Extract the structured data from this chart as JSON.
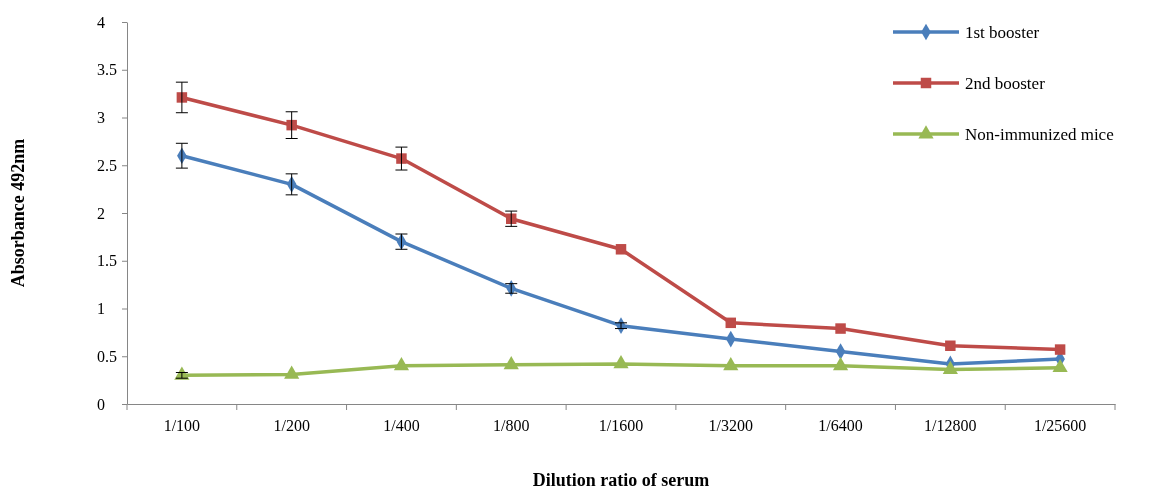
{
  "chart_data": {
    "type": "line",
    "xlabel": "Dilution ratio of serum",
    "ylabel": "Absorbance 492nm",
    "categories": [
      "1/100",
      "1/200",
      "1/400",
      "1/800",
      "1/1600",
      "1/3200",
      "1/6400",
      "1/12800",
      "1/25600"
    ],
    "ylim": [
      0,
      4
    ],
    "yticks": [
      0,
      0.5,
      1,
      1.5,
      2,
      2.5,
      3,
      3.5,
      4
    ],
    "grid": false,
    "legend": "top right",
    "series": [
      {
        "name": "1st booster",
        "color": "#4a7ebb",
        "marker": "diamond",
        "values": [
          2.6,
          2.3,
          1.7,
          1.21,
          0.82,
          0.68,
          0.55,
          0.42,
          0.47
        ],
        "errors": [
          0.13,
          0.11,
          0.08,
          0.05,
          0.03,
          null,
          null,
          null,
          null
        ]
      },
      {
        "name": "2nd booster",
        "color": "#be4b48",
        "marker": "square",
        "values": [
          3.21,
          2.92,
          2.57,
          1.94,
          1.62,
          0.85,
          0.79,
          0.61,
          0.57
        ],
        "errors": [
          0.16,
          0.14,
          0.12,
          0.08,
          null,
          null,
          null,
          null,
          null
        ]
      },
      {
        "name": "Non-immunized mice",
        "color": "#98b954",
        "marker": "triangle",
        "values": [
          0.3,
          0.31,
          0.4,
          0.41,
          0.42,
          0.4,
          0.4,
          0.36,
          0.38
        ],
        "errors": [
          0.03,
          null,
          null,
          null,
          null,
          null,
          null,
          null,
          null
        ]
      }
    ]
  }
}
